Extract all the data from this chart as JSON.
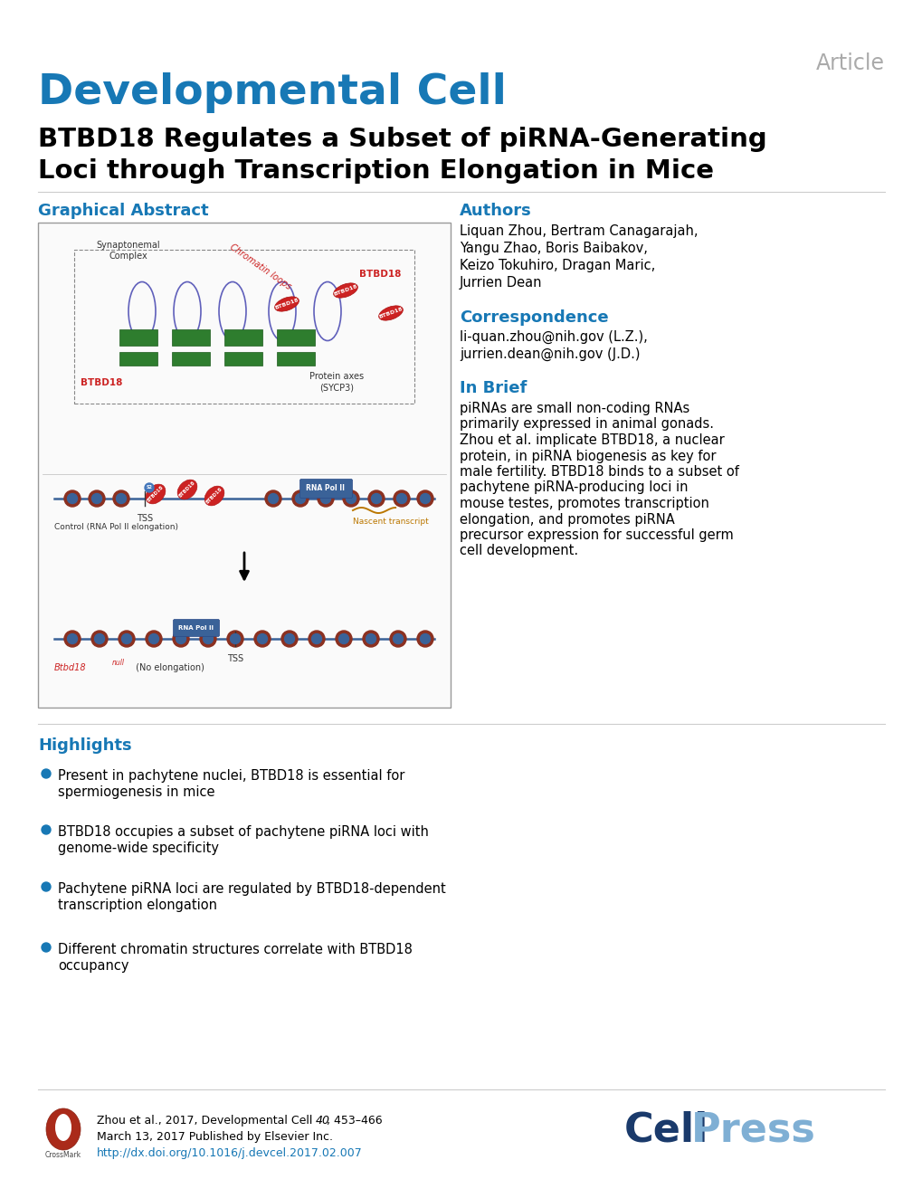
{
  "journal_name": "Developmental Cell",
  "journal_color": "#1778B5",
  "article_label": "Article",
  "article_label_color": "#AAAAAA",
  "title_line1": "BTBD18 Regulates a Subset of piRNA-Generating",
  "title_line2": "Loci through Transcription Elongation in Mice",
  "title_color": "#000000",
  "section_color": "#1778B5",
  "graphical_abstract_label": "Graphical Abstract",
  "authors_label": "Authors",
  "authors_lines": [
    "Liquan Zhou, Bertram Canagarajah,",
    "Yangu Zhao, Boris Baibakov,",
    "Keizo Tokuhiro, Dragan Maric,",
    "Jurrien Dean"
  ],
  "correspondence_label": "Correspondence",
  "correspondence_lines": [
    "li-quan.zhou@nih.gov (L.Z.),",
    "jurrien.dean@nih.gov (J.D.)"
  ],
  "inbrief_label": "In Brief",
  "inbrief_lines": [
    "piRNAs are small non-coding RNAs",
    "primarily expressed in animal gonads.",
    "Zhou et al. implicate BTBD18, a nuclear",
    "protein, in piRNA biogenesis as key for",
    "male fertility. BTBD18 binds to a subset of",
    "pachytene piRNA-producing loci in",
    "mouse testes, promotes transcription",
    "elongation, and promotes piRNA",
    "precursor expression for successful germ",
    "cell development."
  ],
  "highlights_label": "Highlights",
  "highlights": [
    [
      "Present in pachytene nuclei, BTBD18 is essential for",
      "spermiogenesis in mice"
    ],
    [
      "BTBD18 occupies a subset of pachytene piRNA loci with",
      "genome-wide specificity"
    ],
    [
      "Pachytene piRNA loci are regulated by BTBD18-dependent",
      "transcription elongation"
    ],
    [
      "Different chromatin structures correlate with BTBD18",
      "occupancy"
    ]
  ],
  "footer_text1": "Zhou et al., 2017, Developmental Cell ",
  "footer_vol": "40",
  "footer_text2": ", 453–466",
  "footer_date": "March 13, 2017 Published by Elsevier Inc.",
  "footer_doi": "http://dx.doi.org/10.1016/j.devcel.2017.02.007",
  "footer_doi_color": "#1778B5",
  "background_color": "#FFFFFF",
  "text_color": "#000000",
  "bullet_color": "#1778B5",
  "separator_color": "#CCCCCC",
  "box_edge_color": "#999999",
  "cell_color": "#1A3A6B",
  "press_color": "#7FAFD4"
}
